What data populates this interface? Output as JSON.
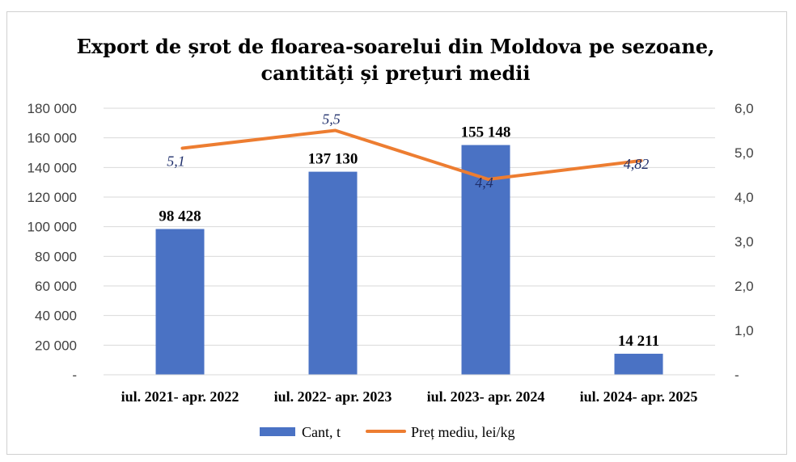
{
  "chart_data": {
    "type": "bar",
    "title_line1": "Export de șrot de floarea-soarelui  din  Moldova pe sezoane,",
    "title_line2": "cantități și prețuri medii",
    "categories": [
      "iul. 2021- apr. 2022",
      "iul. 2022- apr. 2023",
      "iul. 2023- apr. 2024",
      "iul. 2024- apr. 2025"
    ],
    "series": [
      {
        "name": "Cant, t",
        "type": "bar",
        "axis": "left",
        "color": "#4a72c4",
        "values": [
          98428,
          137130,
          155148,
          14211
        ],
        "labels": [
          "98 428",
          "137 130",
          "155 148",
          "14 211"
        ]
      },
      {
        "name": "Preț mediu, lei/kg",
        "type": "line",
        "axis": "right",
        "color": "#ed7d31",
        "values": [
          5.1,
          5.5,
          4.4,
          4.82
        ],
        "labels": [
          "5,1",
          "5,5",
          "4,4",
          "4,82"
        ]
      }
    ],
    "y_left": {
      "range": [
        0,
        180000
      ],
      "ticks": [
        0,
        20000,
        40000,
        60000,
        80000,
        100000,
        120000,
        140000,
        160000,
        180000
      ],
      "tick_labels": [
        "-",
        "20 000",
        "40 000",
        "60 000",
        "80 000",
        "100 000",
        "120 000",
        "140 000",
        "160 000",
        "180 000"
      ]
    },
    "y_right": {
      "range": [
        0,
        6
      ],
      "ticks": [
        0,
        1,
        2,
        3,
        4,
        5,
        6
      ],
      "tick_labels": [
        "-",
        "1,0",
        "2,0",
        "3,0",
        "4,0",
        "5,0",
        "6,0"
      ]
    },
    "grid": true,
    "legend_position": "bottom"
  }
}
